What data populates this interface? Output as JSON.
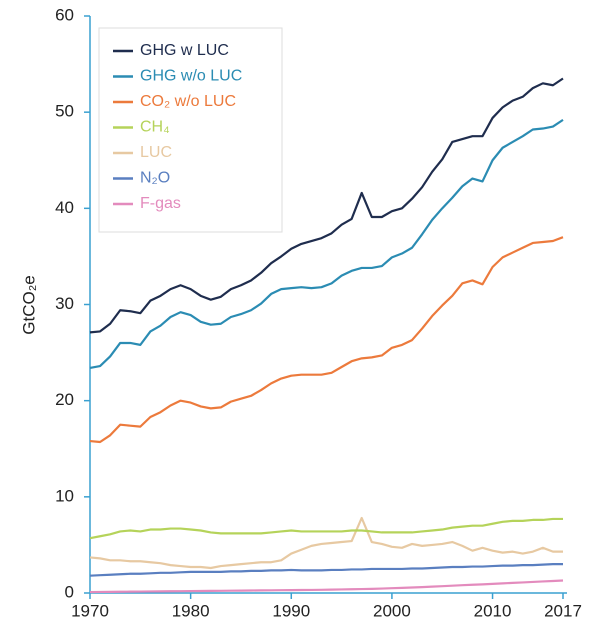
{
  "chart_data": {
    "type": "line",
    "y_label": "GtCO₂e",
    "x": [
      1970,
      1971,
      1972,
      1973,
      1974,
      1975,
      1976,
      1977,
      1978,
      1979,
      1980,
      1981,
      1982,
      1983,
      1984,
      1985,
      1986,
      1987,
      1988,
      1989,
      1990,
      1991,
      1992,
      1993,
      1994,
      1995,
      1996,
      1997,
      1998,
      1999,
      2000,
      2001,
      2002,
      2003,
      2004,
      2005,
      2006,
      2007,
      2008,
      2009,
      2010,
      2011,
      2012,
      2013,
      2014,
      2015,
      2016,
      2017
    ],
    "xlim": [
      1970,
      2017
    ],
    "xticks": [
      1970,
      1980,
      1990,
      2000,
      2010,
      2017
    ],
    "ylim": [
      0,
      60
    ],
    "yticks": [
      0,
      10,
      20,
      30,
      40,
      50,
      60
    ],
    "series": [
      {
        "name": "GHG w LUC",
        "color": "#1f2d4e",
        "values": [
          27.1,
          27.2,
          28,
          29.4,
          29.3,
          29.1,
          30.4,
          30.9,
          31.6,
          32.0,
          31.6,
          30.9,
          30.5,
          30.8,
          31.6,
          32.0,
          32.5,
          33.3,
          34.3,
          35.0,
          35.8,
          36.3,
          36.6,
          36.9,
          37.4,
          38.3,
          38.9,
          41.6,
          39.1,
          39.1,
          39.7,
          40.0,
          41.0,
          42.2,
          43.8,
          45.1,
          46.9,
          47.2,
          47.5,
          47.5,
          49.4,
          50.5,
          51.2,
          51.6,
          52.5,
          53.0,
          52.8,
          53.5
        ]
      },
      {
        "name": "GHG w/o LUC",
        "color": "#2b8cb3",
        "values": [
          23.4,
          23.6,
          24.6,
          26.0,
          26.0,
          25.8,
          27.2,
          27.8,
          28.7,
          29.2,
          28.9,
          28.2,
          27.9,
          28.0,
          28.7,
          29.0,
          29.4,
          30.1,
          31.1,
          31.6,
          31.7,
          31.8,
          31.7,
          31.8,
          32.2,
          33.0,
          33.5,
          33.8,
          33.8,
          34.0,
          34.9,
          35.3,
          35.9,
          37.3,
          38.8,
          40.0,
          41.1,
          42.3,
          43.1,
          42.8,
          45.0,
          46.3,
          46.9,
          47.5,
          48.2,
          48.3,
          48.5,
          49.2
        ]
      },
      {
        "name": "CO₂ w/o LUC",
        "color": "#ec7a3c",
        "values": [
          15.8,
          15.7,
          16.4,
          17.5,
          17.4,
          17.3,
          18.3,
          18.8,
          19.5,
          20.0,
          19.8,
          19.4,
          19.2,
          19.3,
          19.9,
          20.2,
          20.5,
          21.1,
          21.8,
          22.3,
          22.6,
          22.7,
          22.7,
          22.7,
          22.9,
          23.5,
          24.1,
          24.4,
          24.5,
          24.7,
          25.5,
          25.8,
          26.3,
          27.5,
          28.8,
          29.9,
          30.9,
          32.2,
          32.5,
          32.1,
          33.9,
          34.9,
          35.4,
          35.9,
          36.4,
          36.5,
          36.6,
          37.0
        ]
      },
      {
        "name": "CH₄",
        "color": "#b5d35a",
        "values": [
          5.7,
          5.9,
          6.1,
          6.4,
          6.5,
          6.4,
          6.6,
          6.6,
          6.7,
          6.7,
          6.6,
          6.5,
          6.3,
          6.2,
          6.2,
          6.2,
          6.2,
          6.2,
          6.3,
          6.4,
          6.5,
          6.4,
          6.4,
          6.4,
          6.4,
          6.4,
          6.5,
          6.5,
          6.4,
          6.3,
          6.3,
          6.3,
          6.3,
          6.4,
          6.5,
          6.6,
          6.8,
          6.9,
          7.0,
          7.0,
          7.2,
          7.4,
          7.5,
          7.5,
          7.6,
          7.6,
          7.7,
          7.7
        ]
      },
      {
        "name": "LUC",
        "color": "#e7c9a2",
        "values": [
          3.7,
          3.6,
          3.4,
          3.4,
          3.3,
          3.3,
          3.2,
          3.1,
          2.9,
          2.8,
          2.7,
          2.7,
          2.6,
          2.8,
          2.9,
          3.0,
          3.1,
          3.2,
          3.2,
          3.4,
          4.1,
          4.5,
          4.9,
          5.1,
          5.2,
          5.3,
          5.4,
          7.8,
          5.3,
          5.1,
          4.8,
          4.7,
          5.1,
          4.9,
          5.0,
          5.1,
          5.3,
          4.9,
          4.4,
          4.7,
          4.4,
          4.2,
          4.3,
          4.1,
          4.3,
          4.7,
          4.3,
          4.3
        ]
      },
      {
        "name": "N₂O",
        "color": "#5a7fc0",
        "values": [
          1.8,
          1.85,
          1.9,
          1.95,
          2.0,
          2.0,
          2.05,
          2.1,
          2.1,
          2.15,
          2.2,
          2.2,
          2.2,
          2.2,
          2.25,
          2.25,
          2.3,
          2.3,
          2.35,
          2.35,
          2.4,
          2.35,
          2.35,
          2.35,
          2.4,
          2.4,
          2.45,
          2.45,
          2.5,
          2.5,
          2.5,
          2.5,
          2.55,
          2.55,
          2.6,
          2.65,
          2.7,
          2.7,
          2.75,
          2.75,
          2.8,
          2.85,
          2.85,
          2.9,
          2.9,
          2.95,
          3.0,
          3.0
        ]
      },
      {
        "name": "F-gas",
        "color": "#e38bbd",
        "values": [
          0.1,
          0.11,
          0.12,
          0.13,
          0.14,
          0.15,
          0.16,
          0.17,
          0.18,
          0.19,
          0.2,
          0.21,
          0.22,
          0.23,
          0.24,
          0.25,
          0.26,
          0.27,
          0.28,
          0.29,
          0.3,
          0.31,
          0.32,
          0.33,
          0.35,
          0.37,
          0.39,
          0.41,
          0.43,
          0.46,
          0.5,
          0.53,
          0.57,
          0.61,
          0.66,
          0.71,
          0.76,
          0.81,
          0.86,
          0.9,
          0.95,
          1.0,
          1.05,
          1.1,
          1.15,
          1.2,
          1.25,
          1.3
        ]
      }
    ],
    "legend": "upper left"
  }
}
